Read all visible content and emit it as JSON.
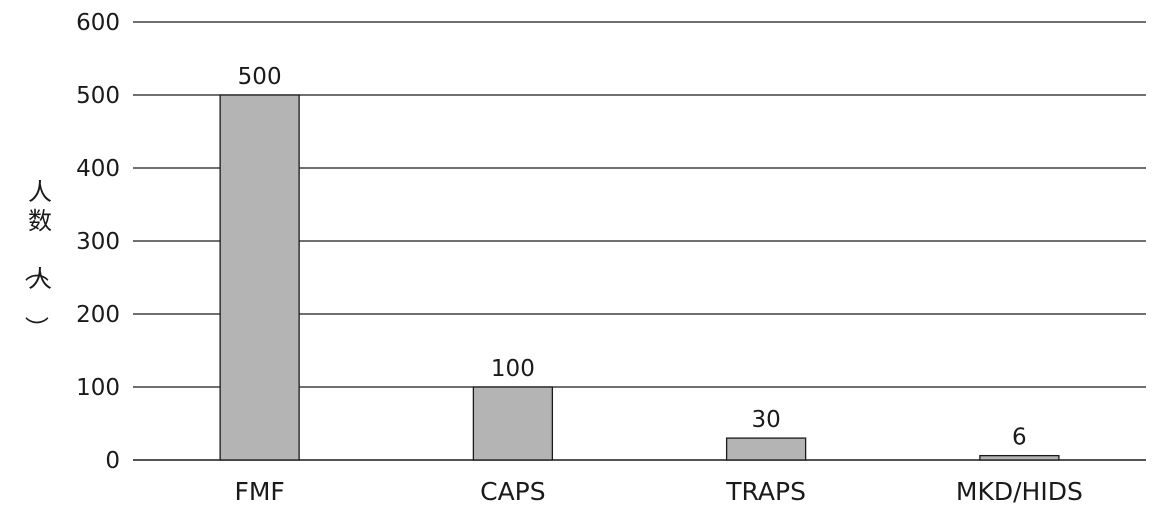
{
  "chart_data": {
    "type": "bar",
    "categories": [
      "FMF",
      "CAPS",
      "TRAPS",
      "MKD/HIDS"
    ],
    "values": [
      500,
      100,
      30,
      6
    ],
    "data_labels": [
      "500",
      "100",
      "30",
      "6"
    ],
    "title": "",
    "xlabel": "",
    "ylabel": "人数（人）",
    "ylim": [
      0,
      600
    ],
    "yticks": [
      0,
      100,
      200,
      300,
      400,
      500,
      600
    ],
    "ytick_labels": [
      "0",
      "100",
      "200",
      "300",
      "400",
      "500",
      "600"
    ],
    "grid": true,
    "legend": "none",
    "bar_color": "#b4b4b4",
    "line_color": "#1a1a1a"
  }
}
